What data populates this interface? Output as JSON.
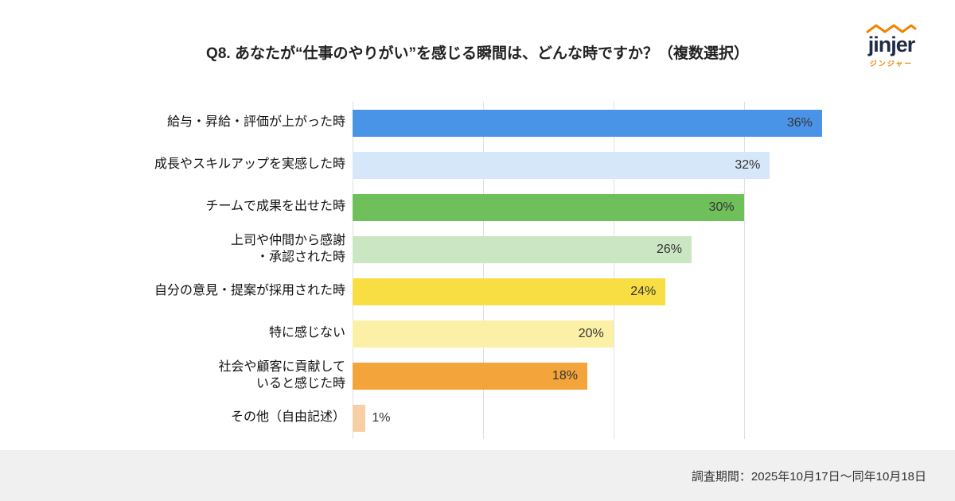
{
  "header": {
    "title": "Q8. あなたが“仕事のやりがい”を感じる瞬間は、どんな時ですか？（複数選択）",
    "logo": {
      "text": "jinjer",
      "subtext": "ジンジャー",
      "accent_color": "#F08300",
      "text_color": "#1E2A46"
    }
  },
  "chart_data": {
    "type": "bar",
    "orientation": "horizontal",
    "title": "Q8. あなたが“仕事のやりがい”を感じる瞬間は、どんな時ですか？（複数選択）",
    "categories": [
      "給与・昇給・評価が上がった時",
      "成長やスキルアップを実感した時",
      "チームで成果を出せた時",
      "上司や仲間から感謝\n・承認された時",
      "自分の意見・提案が採用された時",
      "特に感じない",
      "社会や顧客に貢献して\nいると感じた時",
      "その他（自由記述）"
    ],
    "values": [
      36,
      32,
      30,
      26,
      24,
      20,
      18,
      1
    ],
    "value_labels": [
      "36%",
      "32%",
      "30%",
      "26%",
      "24%",
      "20%",
      "18%",
      "1%"
    ],
    "colors": [
      "#4A94E8",
      "#D7E7FA",
      "#6FC05A",
      "#CBE6C2",
      "#F8DE42",
      "#FBF0A6",
      "#F3A53B",
      "#F8CFA4"
    ],
    "xlim": [
      0,
      44
    ],
    "gridlines": [
      0,
      10,
      20,
      30
    ],
    "grid": true,
    "legend": false,
    "xlabel": "",
    "ylabel": ""
  },
  "footer": {
    "text": "調査期間：2025年10月17日〜同年10月18日"
  }
}
